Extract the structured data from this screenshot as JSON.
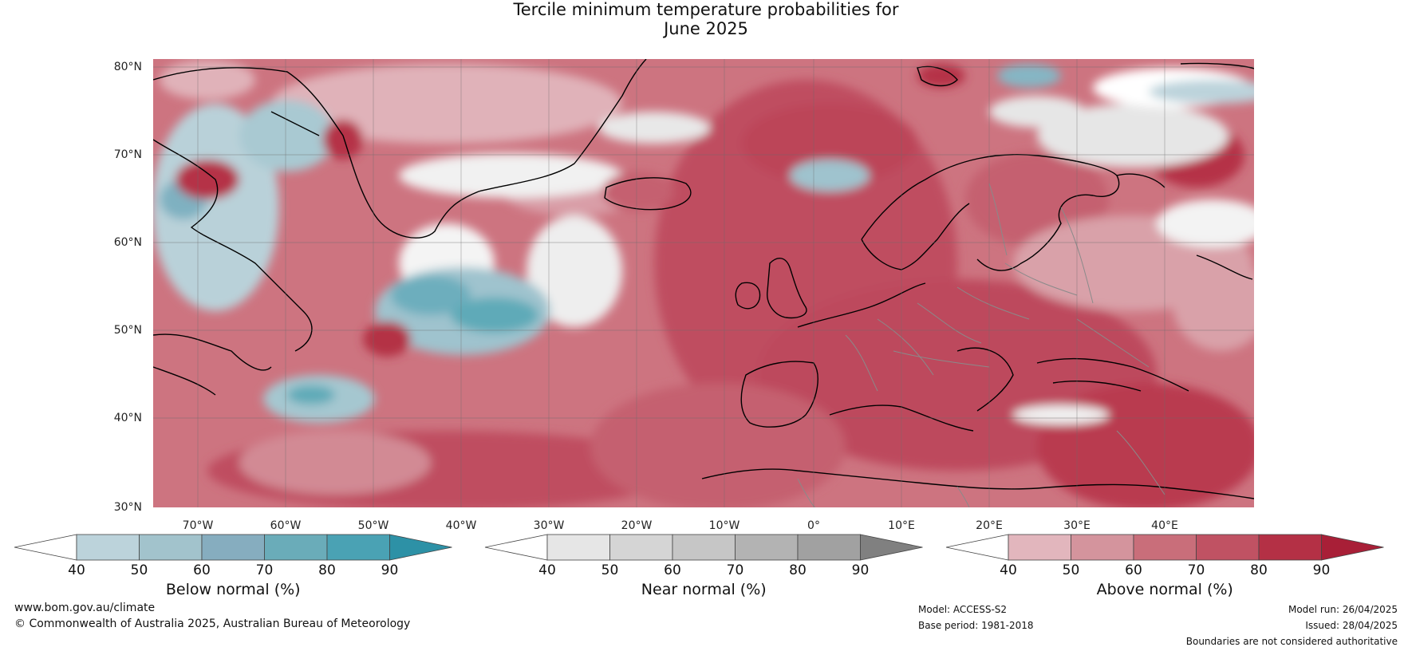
{
  "title": {
    "line1": "Tercile minimum temperature probabilities for",
    "line2": "June 2025"
  },
  "map": {
    "region": "North Atlantic and Europe",
    "lat_labels": [
      "80°N",
      "70°N",
      "60°N",
      "50°N",
      "40°N",
      "30°N"
    ],
    "lon_labels": [
      "70°W",
      "60°W",
      "50°W",
      "40°W",
      "30°W",
      "20°W",
      "10°W",
      "0°",
      "10°E",
      "20°E",
      "30°E",
      "40°E"
    ],
    "colors": {
      "ocean_default": "#cf7a84",
      "above_40": "#e2b6bd",
      "above_50": "#d4949d",
      "above_60": "#c96e7a",
      "above_70": "#c05263",
      "above_80": "#b43045",
      "above_90": "#a81f37",
      "below_40": "#bcd3db",
      "below_50": "#9fc3ce",
      "below_60": "#7fb1c1",
      "below_70": "#5eaab8",
      "below_80": "#45a0b3",
      "near_40": "#e6e6e6",
      "near_50": "#d5d5d5",
      "coastline": "#000000",
      "border": "#8a8a8a",
      "grid": "#777777"
    }
  },
  "colorbars": [
    {
      "id": "below",
      "title": "Below normal (%)",
      "ticks": [
        "40",
        "50",
        "60",
        "70",
        "80",
        "90"
      ],
      "colors": [
        "#ffffff",
        "#bcd3db",
        "#a2c3cc",
        "#86adbf",
        "#6aacb9",
        "#4aa2b4",
        "#2d91a6"
      ]
    },
    {
      "id": "near",
      "title": "Near normal (%)",
      "ticks": [
        "40",
        "50",
        "60",
        "70",
        "80",
        "90"
      ],
      "colors": [
        "#ffffff",
        "#e6e6e6",
        "#d5d5d5",
        "#c6c6c6",
        "#b3b3b3",
        "#a1a1a1",
        "#808080"
      ]
    },
    {
      "id": "above",
      "title": "Above normal (%)",
      "ticks": [
        "40",
        "50",
        "60",
        "70",
        "80",
        "90"
      ],
      "colors": [
        "#ffffff",
        "#e2b6bd",
        "#d4949d",
        "#c96e7a",
        "#c05263",
        "#b43045",
        "#a81f37"
      ]
    }
  ],
  "footer": {
    "website": "www.bom.gov.au/climate",
    "copyright": "© Commonwealth of Australia 2025, Australian Bureau of Meteorology",
    "model": "Model: ACCESS-S2",
    "base_period": "Base period: 1981-2018",
    "model_run": "Model run: 26/04/2025",
    "issued": "Issued: 28/04/2025",
    "disclaimer": "Boundaries are not considered authoritative"
  }
}
